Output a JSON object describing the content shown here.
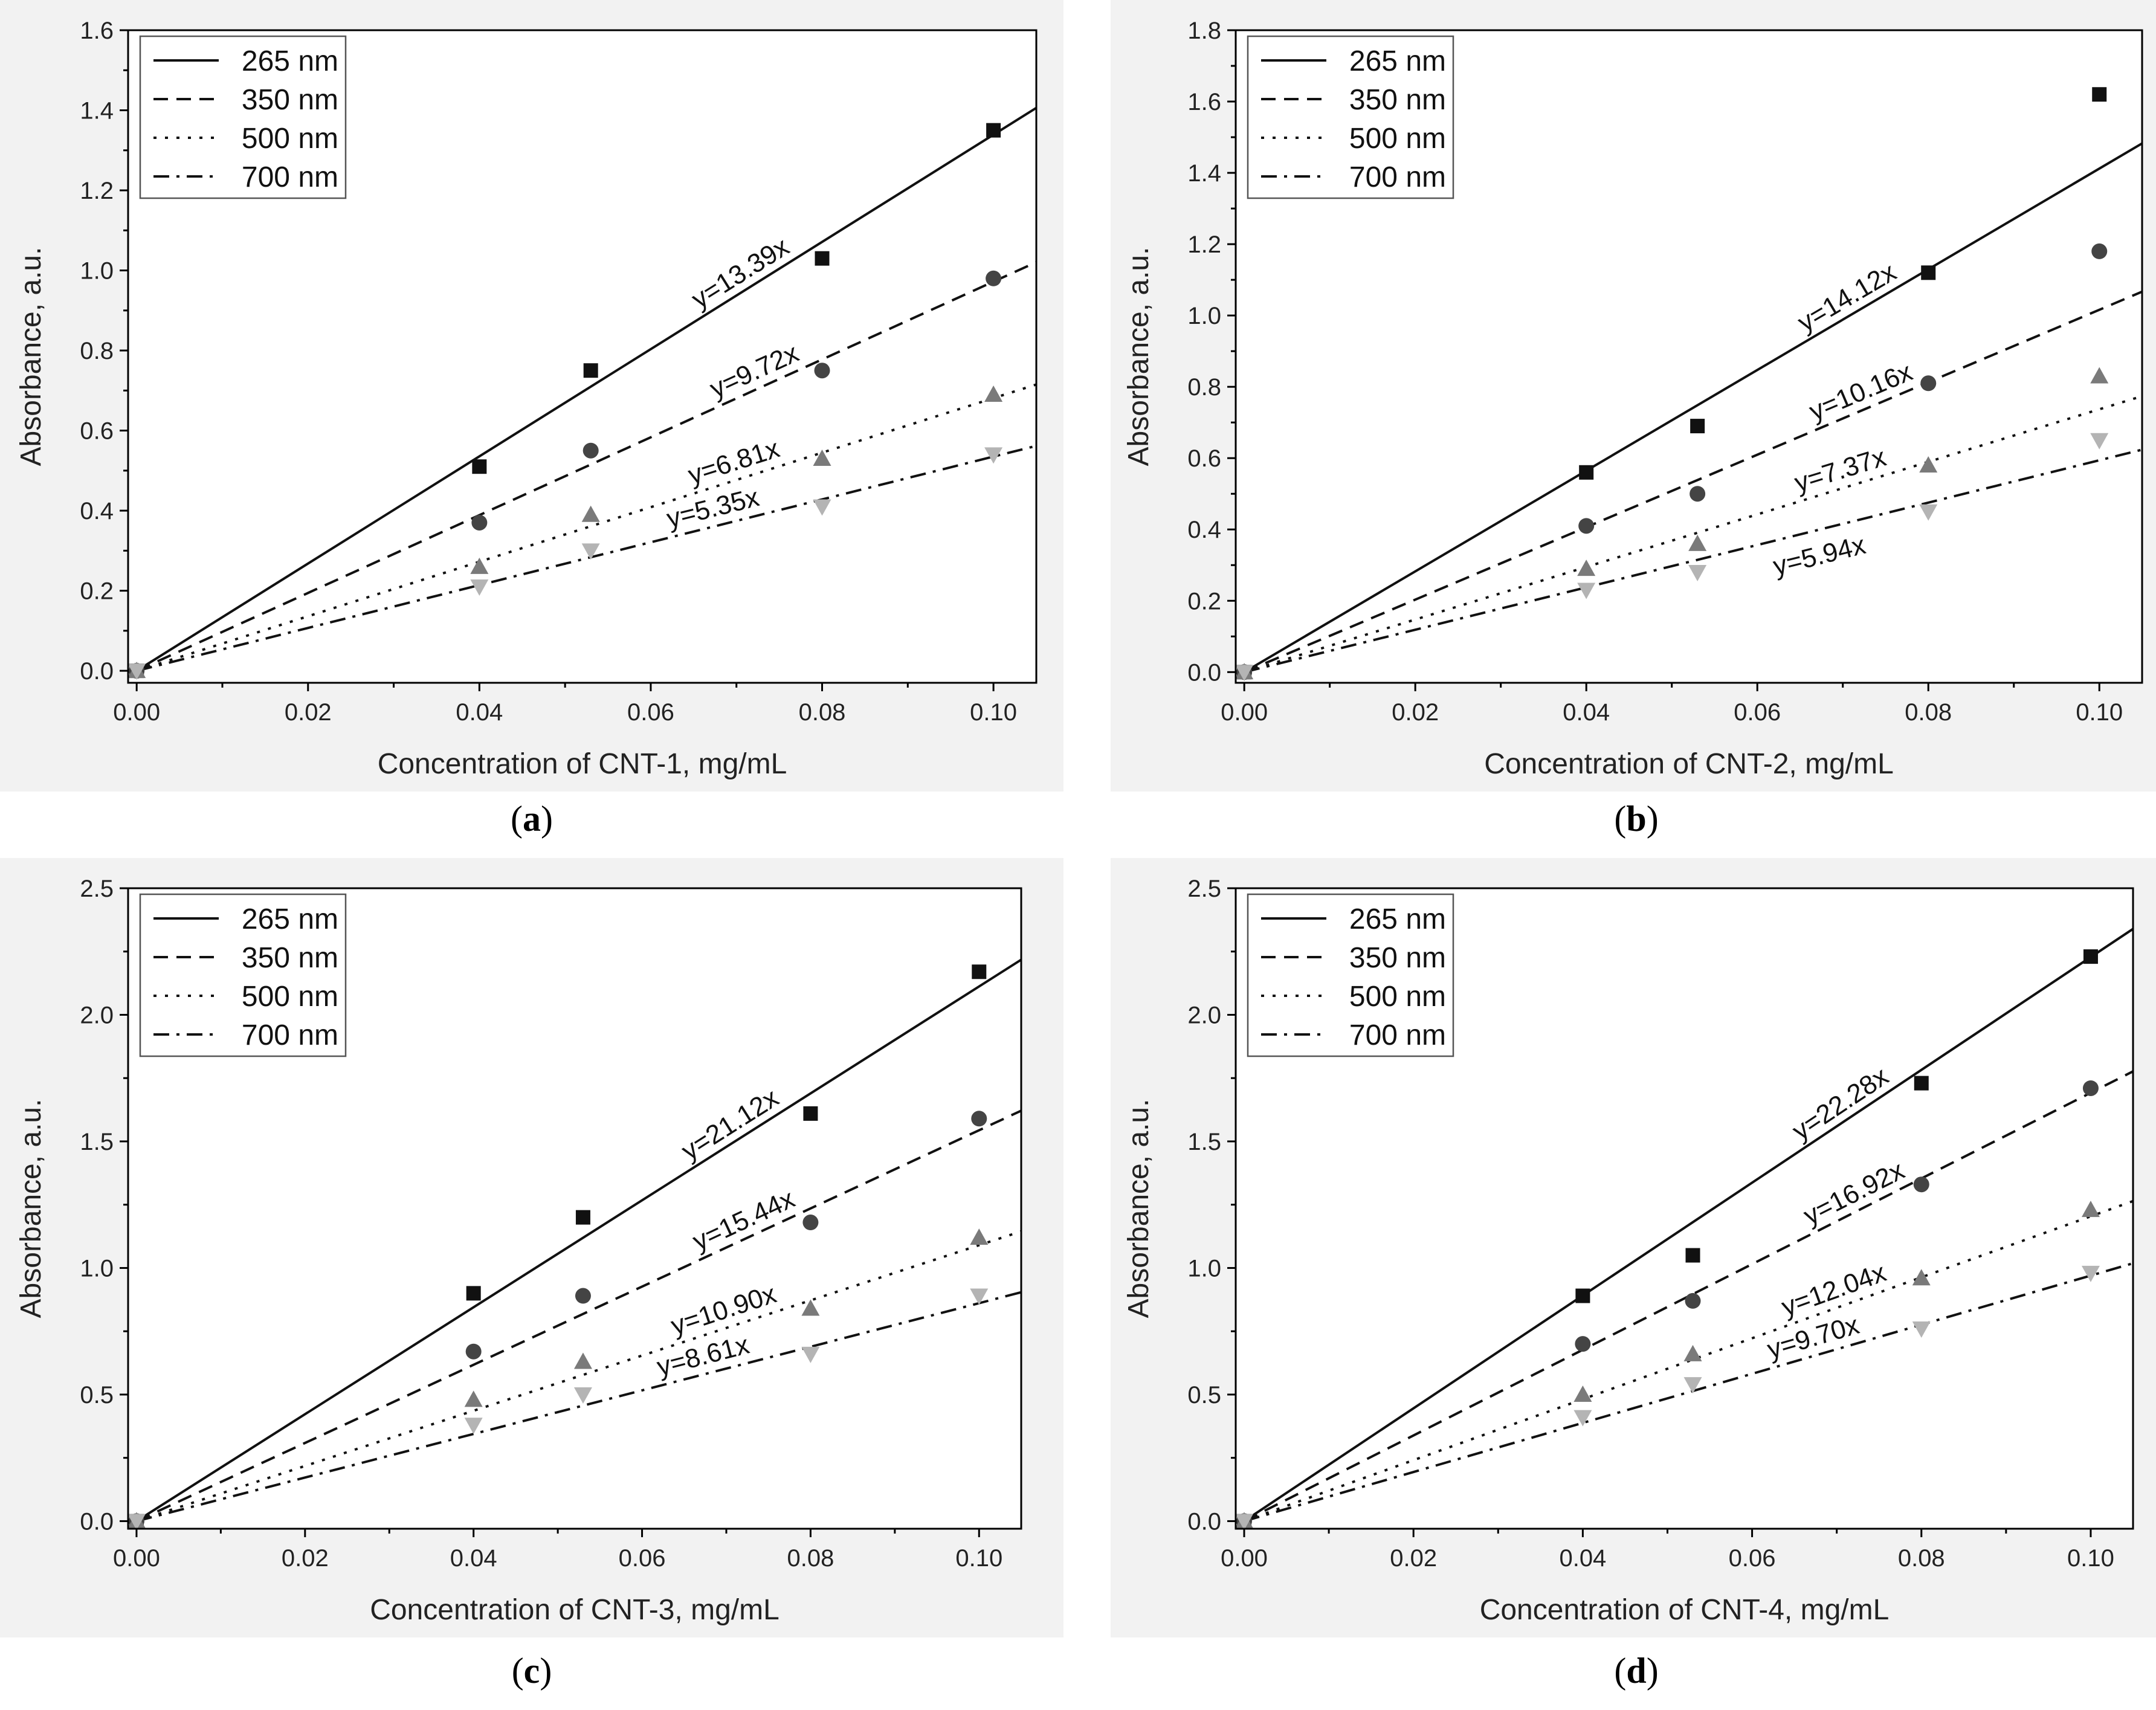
{
  "chart_data": [
    {
      "type": "scatter",
      "panel_label": "a",
      "xlabel": "Concentration of CNT-1, mg/mL",
      "ylabel": "Absorbance, a.u.",
      "xlim": [
        -0.001,
        0.105
      ],
      "ylim": [
        -0.03,
        1.6
      ],
      "xticks": [
        "0.00",
        "0.02",
        "0.04",
        "0.06",
        "0.08",
        "0.10"
      ],
      "yticks": [
        "0.0",
        "0.2",
        "0.4",
        "0.6",
        "0.8",
        "1.0",
        "1.2",
        "1.4",
        "1.6"
      ],
      "legend_position": "top-left",
      "series": [
        {
          "name": "265 nm",
          "marker": "square",
          "color": "#111111",
          "line": "solid",
          "slope": 13.39,
          "equation": "y=13.39x",
          "x": [
            0,
            0.04,
            0.053,
            0.08,
            0.1
          ],
          "y": [
            0,
            0.51,
            0.75,
            1.03,
            1.35
          ]
        },
        {
          "name": "350 nm",
          "marker": "circle",
          "color": "#444444",
          "line": "dash",
          "slope": 9.72,
          "equation": "y=9.72x",
          "x": [
            0,
            0.04,
            0.053,
            0.08,
            0.1
          ],
          "y": [
            0,
            0.37,
            0.55,
            0.75,
            0.98
          ]
        },
        {
          "name": "500 nm",
          "marker": "triangle-up",
          "color": "#7a7a7a",
          "line": "dot",
          "slope": 6.81,
          "equation": "y=6.81x",
          "x": [
            0,
            0.04,
            0.053,
            0.08,
            0.1
          ],
          "y": [
            0,
            0.26,
            0.39,
            0.53,
            0.69
          ]
        },
        {
          "name": "700 nm",
          "marker": "triangle-down",
          "color": "#b4b4b4",
          "line": "dashdot",
          "slope": 5.35,
          "equation": "y=5.35x",
          "x": [
            0,
            0.04,
            0.053,
            0.08,
            0.1
          ],
          "y": [
            0,
            0.21,
            0.3,
            0.41,
            0.54
          ]
        }
      ]
    },
    {
      "type": "scatter",
      "panel_label": "b",
      "xlabel": "Concentration of CNT-2, mg/mL",
      "ylabel": "Absorbance, a.u.",
      "xlim": [
        -0.001,
        0.105
      ],
      "ylim": [
        -0.03,
        1.8
      ],
      "xticks": [
        "0.00",
        "0.02",
        "0.04",
        "0.06",
        "0.08",
        "0.10"
      ],
      "yticks": [
        "0.0",
        "0.2",
        "0.4",
        "0.6",
        "0.8",
        "1.0",
        "1.2",
        "1.4",
        "1.6",
        "1.8"
      ],
      "legend_position": "top-left",
      "series": [
        {
          "name": "265 nm",
          "marker": "square",
          "color": "#111111",
          "line": "solid",
          "slope": 14.12,
          "equation": "y=14.12x",
          "x": [
            0,
            0.04,
            0.053,
            0.08,
            0.1
          ],
          "y": [
            0,
            0.56,
            0.69,
            1.12,
            1.62
          ]
        },
        {
          "name": "350 nm",
          "marker": "circle",
          "color": "#444444",
          "line": "dash",
          "slope": 10.16,
          "equation": "y=10.16x",
          "x": [
            0,
            0.04,
            0.053,
            0.08,
            0.1
          ],
          "y": [
            0,
            0.41,
            0.5,
            0.81,
            1.18
          ]
        },
        {
          "name": "500 nm",
          "marker": "triangle-up",
          "color": "#7a7a7a",
          "line": "dot",
          "slope": 7.37,
          "equation": "y=7.37x",
          "x": [
            0,
            0.04,
            0.053,
            0.08,
            0.1
          ],
          "y": [
            0,
            0.29,
            0.36,
            0.58,
            0.83
          ]
        },
        {
          "name": "700 nm",
          "marker": "triangle-down",
          "color": "#b4b4b4",
          "line": "dashdot",
          "slope": 5.94,
          "equation": "y=5.94x",
          "x": [
            0,
            0.04,
            0.053,
            0.08,
            0.1
          ],
          "y": [
            0,
            0.23,
            0.28,
            0.45,
            0.65
          ]
        }
      ]
    },
    {
      "type": "scatter",
      "panel_label": "c",
      "xlabel": "Concentration of CNT-3, mg/mL",
      "ylabel": "Absorbance, a.u.",
      "xlim": [
        -0.001,
        0.105
      ],
      "ylim": [
        -0.03,
        2.5
      ],
      "xticks": [
        "0.00",
        "0.02",
        "0.04",
        "0.06",
        "0.08",
        "0.10"
      ],
      "yticks": [
        "0.0",
        "0.5",
        "1.0",
        "1.5",
        "2.0",
        "2.5"
      ],
      "legend_position": "top-left",
      "series": [
        {
          "name": "265 nm",
          "marker": "square",
          "color": "#111111",
          "line": "solid",
          "slope": 21.12,
          "equation": "y=21.12x",
          "x": [
            0,
            0.04,
            0.053,
            0.08,
            0.1
          ],
          "y": [
            0,
            0.9,
            1.2,
            1.61,
            2.17
          ]
        },
        {
          "name": "350 nm",
          "marker": "circle",
          "color": "#444444",
          "line": "dash",
          "slope": 15.44,
          "equation": "y=15.44x",
          "x": [
            0,
            0.04,
            0.053,
            0.08,
            0.1
          ],
          "y": [
            0,
            0.67,
            0.89,
            1.18,
            1.59
          ]
        },
        {
          "name": "500 nm",
          "marker": "triangle-up",
          "color": "#7a7a7a",
          "line": "dot",
          "slope": 10.9,
          "equation": "y=10.90x",
          "x": [
            0,
            0.04,
            0.053,
            0.08,
            0.1
          ],
          "y": [
            0,
            0.48,
            0.63,
            0.84,
            1.12
          ]
        },
        {
          "name": "700 nm",
          "marker": "triangle-down",
          "color": "#b4b4b4",
          "line": "dashdot",
          "slope": 8.61,
          "equation": "y=8.61x",
          "x": [
            0,
            0.04,
            0.053,
            0.08,
            0.1
          ],
          "y": [
            0,
            0.38,
            0.5,
            0.66,
            0.89
          ]
        }
      ]
    },
    {
      "type": "scatter",
      "panel_label": "d",
      "xlabel": "Concentration of CNT-4, mg/mL",
      "ylabel": "Absorbance, a.u.",
      "xlim": [
        -0.001,
        0.105
      ],
      "ylim": [
        -0.03,
        2.5
      ],
      "xticks": [
        "0.00",
        "0.02",
        "0.04",
        "0.06",
        "0.08",
        "0.10"
      ],
      "yticks": [
        "0.0",
        "0.5",
        "1.0",
        "1.5",
        "2.0",
        "2.5"
      ],
      "legend_position": "top-left",
      "series": [
        {
          "name": "265 nm",
          "marker": "square",
          "color": "#111111",
          "line": "solid",
          "slope": 22.28,
          "equation": "y=22.28x",
          "x": [
            0,
            0.04,
            0.053,
            0.08,
            0.1
          ],
          "y": [
            0,
            0.89,
            1.05,
            1.73,
            2.23
          ]
        },
        {
          "name": "350 nm",
          "marker": "circle",
          "color": "#444444",
          "line": "dash",
          "slope": 16.92,
          "equation": "y=16.92x",
          "x": [
            0,
            0.04,
            0.053,
            0.08,
            0.1
          ],
          "y": [
            0,
            0.7,
            0.87,
            1.33,
            1.71
          ]
        },
        {
          "name": "500 nm",
          "marker": "triangle-up",
          "color": "#7a7a7a",
          "line": "dot",
          "slope": 12.04,
          "equation": "y=12.04x",
          "x": [
            0,
            0.04,
            0.053,
            0.08,
            0.1
          ],
          "y": [
            0,
            0.5,
            0.66,
            0.96,
            1.23
          ]
        },
        {
          "name": "700 nm",
          "marker": "triangle-down",
          "color": "#b4b4b4",
          "line": "dashdot",
          "slope": 9.7,
          "equation": "y=9.70x",
          "x": [
            0,
            0.04,
            0.053,
            0.08,
            0.1
          ],
          "y": [
            0,
            0.41,
            0.54,
            0.76,
            0.98
          ]
        }
      ]
    }
  ]
}
